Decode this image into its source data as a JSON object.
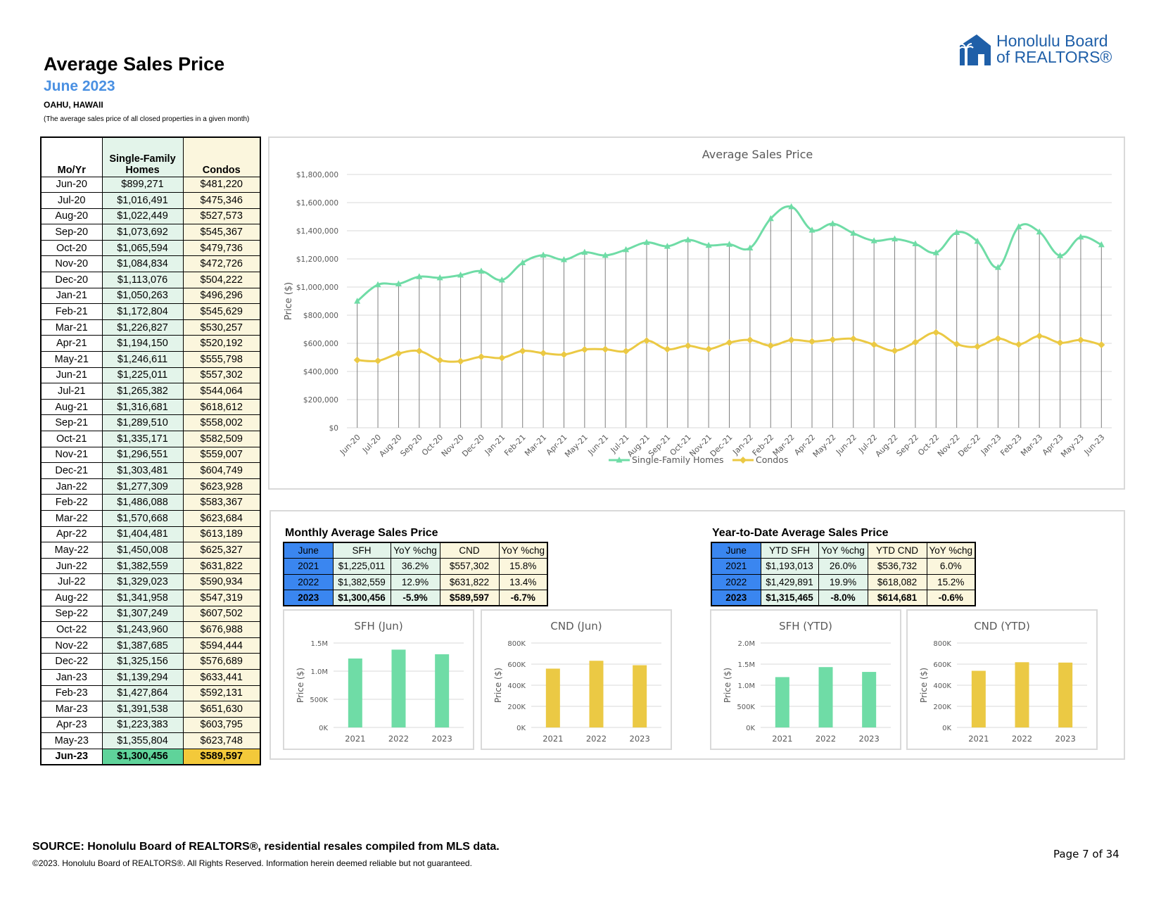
{
  "header": {
    "title": "Average Sales Price",
    "subtitle": "June 2023",
    "location": "OAHU, HAWAII",
    "note": "(The average sales price of all closed properties in a given month)"
  },
  "logo": {
    "line1": "Honolulu Board",
    "line2": "of REALTORS®"
  },
  "left_table": {
    "headers": {
      "mo": "Mo/Yr",
      "sfh_line1": "Single-Family",
      "sfh_line2": "Homes",
      "cnd": "Condos"
    },
    "rows": [
      {
        "mo": "Jun-20",
        "sfh": "$899,271",
        "cnd": "$481,220"
      },
      {
        "mo": "Jul-20",
        "sfh": "$1,016,491",
        "cnd": "$475,346"
      },
      {
        "mo": "Aug-20",
        "sfh": "$1,022,449",
        "cnd": "$527,573"
      },
      {
        "mo": "Sep-20",
        "sfh": "$1,073,692",
        "cnd": "$545,367"
      },
      {
        "mo": "Oct-20",
        "sfh": "$1,065,594",
        "cnd": "$479,736"
      },
      {
        "mo": "Nov-20",
        "sfh": "$1,084,834",
        "cnd": "$472,726"
      },
      {
        "mo": "Dec-20",
        "sfh": "$1,113,076",
        "cnd": "$504,222"
      },
      {
        "mo": "Jan-21",
        "sfh": "$1,050,263",
        "cnd": "$496,296"
      },
      {
        "mo": "Feb-21",
        "sfh": "$1,172,804",
        "cnd": "$545,629"
      },
      {
        "mo": "Mar-21",
        "sfh": "$1,226,827",
        "cnd": "$530,257"
      },
      {
        "mo": "Apr-21",
        "sfh": "$1,194,150",
        "cnd": "$520,192"
      },
      {
        "mo": "May-21",
        "sfh": "$1,246,611",
        "cnd": "$555,798"
      },
      {
        "mo": "Jun-21",
        "sfh": "$1,225,011",
        "cnd": "$557,302"
      },
      {
        "mo": "Jul-21",
        "sfh": "$1,265,382",
        "cnd": "$544,064"
      },
      {
        "mo": "Aug-21",
        "sfh": "$1,316,681",
        "cnd": "$618,612"
      },
      {
        "mo": "Sep-21",
        "sfh": "$1,289,510",
        "cnd": "$558,002"
      },
      {
        "mo": "Oct-21",
        "sfh": "$1,335,171",
        "cnd": "$582,509"
      },
      {
        "mo": "Nov-21",
        "sfh": "$1,296,551",
        "cnd": "$559,007"
      },
      {
        "mo": "Dec-21",
        "sfh": "$1,303,481",
        "cnd": "$604,749"
      },
      {
        "mo": "Jan-22",
        "sfh": "$1,277,309",
        "cnd": "$623,928"
      },
      {
        "mo": "Feb-22",
        "sfh": "$1,486,088",
        "cnd": "$583,367"
      },
      {
        "mo": "Mar-22",
        "sfh": "$1,570,668",
        "cnd": "$623,684"
      },
      {
        "mo": "Apr-22",
        "sfh": "$1,404,481",
        "cnd": "$613,189"
      },
      {
        "mo": "May-22",
        "sfh": "$1,450,008",
        "cnd": "$625,327"
      },
      {
        "mo": "Jun-22",
        "sfh": "$1,382,559",
        "cnd": "$631,822"
      },
      {
        "mo": "Jul-22",
        "sfh": "$1,329,023",
        "cnd": "$590,934"
      },
      {
        "mo": "Aug-22",
        "sfh": "$1,341,958",
        "cnd": "$547,319"
      },
      {
        "mo": "Sep-22",
        "sfh": "$1,307,249",
        "cnd": "$607,502"
      },
      {
        "mo": "Oct-22",
        "sfh": "$1,243,960",
        "cnd": "$676,988"
      },
      {
        "mo": "Nov-22",
        "sfh": "$1,387,685",
        "cnd": "$594,444"
      },
      {
        "mo": "Dec-22",
        "sfh": "$1,325,156",
        "cnd": "$576,689"
      },
      {
        "mo": "Jan-23",
        "sfh": "$1,139,294",
        "cnd": "$633,441"
      },
      {
        "mo": "Feb-23",
        "sfh": "$1,427,864",
        "cnd": "$592,131"
      },
      {
        "mo": "Mar-23",
        "sfh": "$1,391,538",
        "cnd": "$651,630"
      },
      {
        "mo": "Apr-23",
        "sfh": "$1,223,383",
        "cnd": "$603,795"
      },
      {
        "mo": "May-23",
        "sfh": "$1,355,804",
        "cnd": "$623,748"
      },
      {
        "mo": "Jun-23",
        "sfh": "$1,300,456",
        "cnd": "$589,597"
      }
    ]
  },
  "monthly_summary": {
    "title": "Monthly Average Sales Price",
    "headers": [
      "June",
      "SFH",
      "YoY %chg",
      "CND",
      "YoY %chg"
    ],
    "rows": [
      [
        "2021",
        "$1,225,011",
        "36.2%",
        "$557,302",
        "15.8%"
      ],
      [
        "2022",
        "$1,382,559",
        "12.9%",
        "$631,822",
        "13.4%"
      ],
      [
        "2023",
        "$1,300,456",
        "-5.9%",
        "$589,597",
        "-6.7%"
      ]
    ]
  },
  "ytd_summary": {
    "title": "Year-to-Date Average Sales Price",
    "headers": [
      "June",
      "YTD SFH",
      "YoY %chg",
      "YTD CND",
      "YoY %chg"
    ],
    "rows": [
      [
        "2021",
        "$1,193,013",
        "26.0%",
        "$536,732",
        "6.0%"
      ],
      [
        "2022",
        "$1,429,891",
        "19.9%",
        "$618,082",
        "15.2%"
      ],
      [
        "2023",
        "$1,315,465",
        "-8.0%",
        "$614,681",
        "-0.6%"
      ]
    ]
  },
  "colors": {
    "sfh": "#6fdca6",
    "cnd": "#ebc944",
    "grid": "#d9d9d9",
    "axis_text": "#595959"
  },
  "chart_data": [
    {
      "type": "line",
      "title": "Average Sales Price",
      "ylabel": "Price ($)",
      "xlabel": "",
      "ylim": [
        0,
        1800000
      ],
      "yticks": [
        0,
        200000,
        400000,
        600000,
        800000,
        1000000,
        1200000,
        1400000,
        1600000,
        1800000
      ],
      "ytick_labels": [
        "$0",
        "$200,000",
        "$400,000",
        "$600,000",
        "$800,000",
        "$1,000,000",
        "$1,200,000",
        "$1,400,000",
        "$1,600,000",
        "$1,800,000"
      ],
      "legend": "bottom",
      "categories": [
        "Jun-20",
        "Jul-20",
        "Aug-20",
        "Sep-20",
        "Oct-20",
        "Nov-20",
        "Dec-20",
        "Jan-21",
        "Feb-21",
        "Mar-21",
        "Apr-21",
        "May-21",
        "Jun-21",
        "Jul-21",
        "Aug-21",
        "Sep-21",
        "Oct-21",
        "Nov-21",
        "Dec-21",
        "Jan-22",
        "Feb-22",
        "Mar-22",
        "Apr-22",
        "May-22",
        "Jun-22",
        "Jul-22",
        "Aug-22",
        "Sep-22",
        "Oct-22",
        "Nov-22",
        "Dec-22",
        "Jan-23",
        "Feb-23",
        "Mar-23",
        "Apr-23",
        "May-23",
        "Jun-23"
      ],
      "series": [
        {
          "name": "Single-Family Homes",
          "values": [
            899271,
            1016491,
            1022449,
            1073692,
            1065594,
            1084834,
            1113076,
            1050263,
            1172804,
            1226827,
            1194150,
            1246611,
            1225011,
            1265382,
            1316681,
            1289510,
            1335171,
            1296551,
            1303481,
            1277309,
            1486088,
            1570668,
            1404481,
            1450008,
            1382559,
            1329023,
            1341958,
            1307249,
            1243960,
            1387685,
            1325156,
            1139294,
            1427864,
            1391538,
            1223383,
            1355804,
            1300456
          ]
        },
        {
          "name": "Condos",
          "values": [
            481220,
            475346,
            527573,
            545367,
            479736,
            472726,
            504222,
            496296,
            545629,
            530257,
            520192,
            555798,
            557302,
            544064,
            618612,
            558002,
            582509,
            559007,
            604749,
            623928,
            583367,
            623684,
            613189,
            625327,
            631822,
            590934,
            547319,
            607502,
            676988,
            594444,
            576689,
            633441,
            592131,
            651630,
            603795,
            623748,
            589597
          ]
        }
      ]
    },
    {
      "type": "bar",
      "title": "SFH (Jun)",
      "ylabel": "Price ($)",
      "categories": [
        "2021",
        "2022",
        "2023"
      ],
      "values": [
        1225011,
        1382559,
        1300456
      ],
      "ylim": [
        0,
        1500000
      ],
      "yticks": [
        0,
        500000,
        1000000,
        1500000
      ],
      "ytick_labels": [
        "0K",
        "500K",
        "1.0M",
        "1.5M"
      ]
    },
    {
      "type": "bar",
      "title": "CND (Jun)",
      "ylabel": "Price ($)",
      "categories": [
        "2021",
        "2022",
        "2023"
      ],
      "values": [
        557302,
        631822,
        589597
      ],
      "ylim": [
        0,
        800000
      ],
      "yticks": [
        0,
        200000,
        400000,
        600000,
        800000
      ],
      "ytick_labels": [
        "0K",
        "200K",
        "400K",
        "600K",
        "800K"
      ]
    },
    {
      "type": "bar",
      "title": "SFH (YTD)",
      "ylabel": "Price ($)",
      "categories": [
        "2021",
        "2022",
        "2023"
      ],
      "values": [
        1193013,
        1429891,
        1315465
      ],
      "ylim": [
        0,
        2000000
      ],
      "yticks": [
        0,
        500000,
        1000000,
        1500000,
        2000000
      ],
      "ytick_labels": [
        "0K",
        "500K",
        "1.0M",
        "1.5M",
        "2.0M"
      ]
    },
    {
      "type": "bar",
      "title": "CND (YTD)",
      "ylabel": "Price ($)",
      "categories": [
        "2021",
        "2022",
        "2023"
      ],
      "values": [
        536732,
        618082,
        614681
      ],
      "ylim": [
        0,
        800000
      ],
      "yticks": [
        0,
        200000,
        400000,
        600000,
        800000
      ],
      "ytick_labels": [
        "0K",
        "200K",
        "400K",
        "600K",
        "800K"
      ]
    }
  ],
  "footer": {
    "source": "SOURCE: Honolulu Board of REALTORS®, residential resales compiled from MLS data.",
    "copyright": "©2023. Honolulu Board of REALTORS®. All Rights Reserved. Information herein deemed reliable but not guaranteed.",
    "page": "Page 7 of 34"
  }
}
